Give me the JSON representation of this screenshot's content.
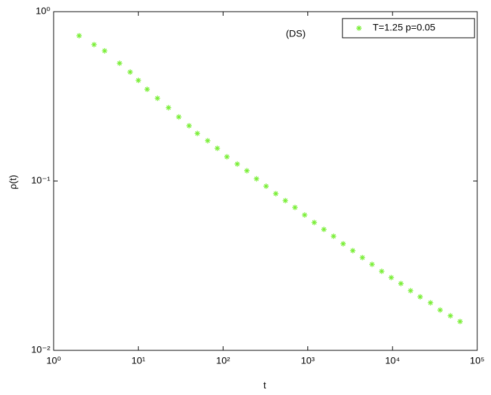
{
  "chart_data": {
    "type": "scatter",
    "annotation": "(DS)",
    "xlabel": "t",
    "ylabel": "ρ(t)",
    "log_x": true,
    "log_y": true,
    "legend": "upper right",
    "xlim": [
      1,
      100000
    ],
    "xticks": [
      {
        "value": 1,
        "label": "10⁰"
      },
      {
        "value": 10,
        "label": "10¹"
      },
      {
        "value": 100,
        "label": "10²"
      },
      {
        "value": 1000,
        "label": "10³"
      },
      {
        "value": 10000,
        "label": "10⁴"
      },
      {
        "value": 100000,
        "label": "10⁵"
      }
    ],
    "ylim": [
      0.01,
      1
    ],
    "yticks": [
      {
        "value": 0.01,
        "label": "10⁻²"
      },
      {
        "value": 0.1,
        "label": "10⁻¹"
      },
      {
        "value": 1,
        "label": "10⁰"
      }
    ],
    "series": [
      {
        "name": "T=1.25 p=0.05",
        "color": "#77ee33",
        "x": [
          2,
          3,
          4,
          6,
          8,
          10,
          12.7,
          16.8,
          22.7,
          30,
          39.7,
          49.7,
          65.8,
          85.5,
          111,
          147,
          191,
          248,
          322,
          419,
          543,
          706,
          918,
          1192,
          1549,
          2013,
          2614,
          3396,
          4410,
          5730,
          7450,
          9660,
          12560,
          16330,
          21190,
          28050,
          36470,
          48190,
          62660
        ],
        "values": [
          0.721,
          0.639,
          0.587,
          0.496,
          0.44,
          0.393,
          0.348,
          0.308,
          0.271,
          0.239,
          0.212,
          0.191,
          0.173,
          0.156,
          0.139,
          0.126,
          0.115,
          0.103,
          0.0932,
          0.0842,
          0.0766,
          0.0698,
          0.063,
          0.0569,
          0.0518,
          0.0472,
          0.0426,
          0.0388,
          0.0353,
          0.0322,
          0.0293,
          0.0269,
          0.0248,
          0.0225,
          0.0207,
          0.0191,
          0.0173,
          0.016,
          0.0148
        ]
      }
    ]
  }
}
